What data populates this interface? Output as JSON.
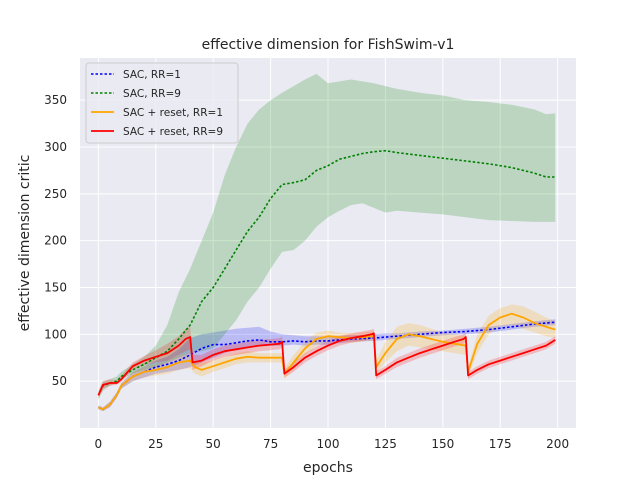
{
  "chart_data": {
    "type": "line",
    "title": "effective dimension for FishSwim-v1",
    "xlabel": "epochs",
    "ylabel": "effective dimension critic",
    "xlim": [
      -8,
      208
    ],
    "ylim": [
      0,
      395
    ],
    "xticks": [
      0,
      25,
      50,
      75,
      100,
      125,
      150,
      175,
      200
    ],
    "yticks": [
      50,
      100,
      150,
      200,
      250,
      300,
      350
    ],
    "grid": true,
    "legend_position": "top-left",
    "background": "#eaeaf2",
    "series": [
      {
        "name": "SAC, RR=1",
        "color": "#0000ff",
        "dash": "dotted",
        "band_color": "#0000ff",
        "x": [
          0,
          2,
          5,
          8,
          10,
          15,
          20,
          25,
          30,
          35,
          40,
          45,
          50,
          55,
          60,
          65,
          70,
          75,
          80,
          85,
          90,
          95,
          100,
          110,
          120,
          125,
          130,
          140,
          150,
          160,
          170,
          180,
          190,
          199
        ],
        "y": [
          22,
          20,
          25,
          35,
          45,
          55,
          60,
          65,
          68,
          72,
          78,
          85,
          89,
          89,
          91,
          93,
          94,
          92,
          92,
          93,
          92,
          93,
          93,
          95,
          96,
          97,
          98,
          100,
          102,
          103,
          105,
          108,
          111,
          113
        ],
        "lower": [
          20,
          18,
          22,
          32,
          42,
          50,
          54,
          58,
          60,
          62,
          65,
          70,
          75,
          80,
          85,
          87,
          89,
          88,
          88,
          89,
          88,
          89,
          89,
          92,
          93,
          94,
          95,
          97,
          99,
          100,
          102,
          105,
          108,
          110
        ],
        "upper": [
          24,
          22,
          28,
          38,
          48,
          60,
          66,
          72,
          76,
          84,
          96,
          100,
          102,
          104,
          106,
          107,
          108,
          103,
          100,
          99,
          98,
          98,
          98,
          99,
          100,
          101,
          101,
          103,
          104,
          106,
          108,
          111,
          114,
          116
        ]
      },
      {
        "name": "SAC, RR=9",
        "color": "#008000",
        "dash": "dotted",
        "band_color": "#008000",
        "x": [
          0,
          2,
          5,
          8,
          10,
          15,
          20,
          25,
          30,
          35,
          40,
          45,
          50,
          55,
          60,
          65,
          70,
          75,
          80,
          85,
          90,
          95,
          100,
          105,
          110,
          115,
          120,
          125,
          130,
          140,
          150,
          160,
          170,
          180,
          190,
          195,
          199
        ],
        "y": [
          35,
          45,
          48,
          50,
          55,
          62,
          68,
          75,
          82,
          95,
          110,
          135,
          150,
          170,
          190,
          210,
          225,
          245,
          260,
          262,
          265,
          275,
          280,
          287,
          290,
          293,
          295,
          296,
          294,
          291,
          288,
          285,
          282,
          278,
          272,
          268,
          268
        ],
        "lower": [
          30,
          40,
          45,
          48,
          52,
          58,
          62,
          65,
          70,
          75,
          80,
          82,
          85,
          100,
          115,
          135,
          150,
          170,
          188,
          190,
          200,
          215,
          225,
          232,
          238,
          240,
          235,
          230,
          232,
          230,
          228,
          225,
          222,
          221,
          220,
          220,
          220
        ],
        "upper": [
          40,
          50,
          52,
          55,
          60,
          68,
          76,
          88,
          110,
          145,
          170,
          200,
          230,
          270,
          300,
          325,
          340,
          350,
          358,
          365,
          372,
          378,
          368,
          370,
          372,
          370,
          368,
          365,
          362,
          358,
          355,
          350,
          348,
          345,
          340,
          335,
          336
        ]
      },
      {
        "name": "SAC + reset, RR=1",
        "color": "#ffa500",
        "dash": "solid",
        "band_color": "#ffa500",
        "x": [
          0,
          2,
          5,
          8,
          10,
          15,
          20,
          25,
          30,
          35,
          40,
          42,
          45,
          50,
          55,
          60,
          65,
          70,
          75,
          80,
          81,
          85,
          90,
          95,
          100,
          105,
          110,
          115,
          120,
          121,
          125,
          130,
          135,
          140,
          145,
          150,
          155,
          160,
          161,
          165,
          170,
          175,
          180,
          185,
          190,
          195,
          199
        ],
        "y": [
          22,
          20,
          25,
          35,
          45,
          55,
          60,
          62,
          65,
          70,
          72,
          65,
          62,
          66,
          70,
          74,
          76,
          75,
          75,
          75,
          58,
          70,
          85,
          95,
          98,
          97,
          96,
          97,
          98,
          65,
          80,
          95,
          100,
          98,
          95,
          92,
          90,
          88,
          60,
          90,
          110,
          118,
          122,
          118,
          112,
          108,
          105
        ],
        "lower": [
          20,
          18,
          22,
          32,
          42,
          50,
          54,
          56,
          58,
          62,
          64,
          58,
          55,
          60,
          64,
          68,
          70,
          70,
          70,
          70,
          52,
          62,
          78,
          88,
          92,
          92,
          91,
          92,
          93,
          58,
          70,
          82,
          88,
          86,
          84,
          82,
          80,
          78,
          55,
          80,
          100,
          108,
          110,
          106,
          102,
          98,
          96
        ],
        "upper": [
          24,
          22,
          28,
          38,
          48,
          60,
          66,
          68,
          72,
          78,
          80,
          72,
          70,
          72,
          76,
          80,
          82,
          80,
          80,
          80,
          64,
          78,
          92,
          102,
          104,
          102,
          101,
          102,
          103,
          72,
          92,
          108,
          112,
          110,
          106,
          102,
          100,
          98,
          65,
          100,
          120,
          128,
          132,
          130,
          124,
          118,
          114
        ]
      },
      {
        "name": "SAC + reset, RR=9",
        "color": "#ff0000",
        "dash": "solid",
        "band_color": "#ff0000",
        "x": [
          0,
          2,
          5,
          8,
          10,
          15,
          20,
          25,
          30,
          35,
          38,
          40,
          41,
          45,
          50,
          55,
          60,
          65,
          70,
          75,
          79,
          80,
          81,
          85,
          90,
          95,
          100,
          105,
          110,
          115,
          119,
          120,
          121,
          125,
          130,
          135,
          140,
          145,
          150,
          155,
          159,
          160,
          161,
          165,
          170,
          175,
          180,
          185,
          190,
          195,
          199
        ],
        "y": [
          35,
          46,
          48,
          48,
          52,
          66,
          72,
          76,
          80,
          88,
          95,
          97,
          70,
          72,
          78,
          82,
          84,
          86,
          88,
          89,
          90,
          92,
          58,
          65,
          75,
          82,
          88,
          93,
          96,
          98,
          100,
          101,
          56,
          62,
          70,
          75,
          80,
          84,
          88,
          92,
          95,
          97,
          56,
          62,
          68,
          72,
          76,
          80,
          84,
          88,
          94
        ],
        "lower": [
          32,
          42,
          45,
          46,
          49,
          62,
          67,
          70,
          72,
          78,
          82,
          84,
          62,
          66,
          72,
          76,
          78,
          80,
          82,
          83,
          84,
          86,
          54,
          60,
          70,
          77,
          83,
          88,
          91,
          93,
          95,
          96,
          52,
          58,
          65,
          70,
          75,
          79,
          83,
          87,
          90,
          92,
          52,
          58,
          64,
          68,
          72,
          76,
          80,
          84,
          90
        ],
        "upper": [
          38,
          50,
          52,
          51,
          56,
          70,
          77,
          83,
          90,
          98,
          106,
          108,
          78,
          78,
          84,
          88,
          90,
          92,
          94,
          95,
          96,
          98,
          62,
          70,
          80,
          87,
          93,
          98,
          101,
          103,
          105,
          106,
          60,
          66,
          75,
          80,
          85,
          89,
          93,
          97,
          100,
          102,
          60,
          66,
          72,
          76,
          80,
          84,
          88,
          92,
          98
        ]
      }
    ]
  }
}
